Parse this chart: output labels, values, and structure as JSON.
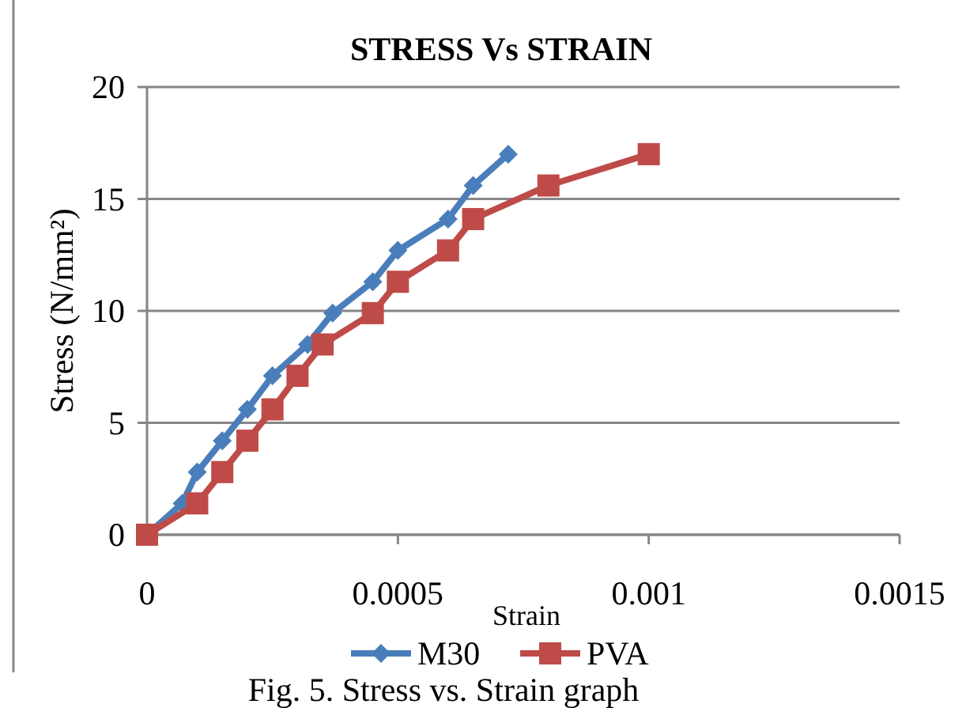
{
  "chart_data": {
    "type": "line",
    "title": "STRESS Vs STRAIN",
    "xlabel": "Strain",
    "ylabel": "Stress (N/mm²)",
    "xlim": [
      0,
      0.0015
    ],
    "xticks": [
      0,
      0.0005,
      0.001,
      0.0015
    ],
    "ylim": [
      0,
      20
    ],
    "yticks": [
      0,
      5,
      10,
      15,
      20
    ],
    "grid": "y",
    "legend": "bottom",
    "marker": "diamond",
    "annotations": [
      "Fig. 5.  Stress vs. Strain graph"
    ],
    "series": [
      {
        "name": "M30",
        "color": "#4a7ebb",
        "x": [
          0,
          7e-05,
          0.0001,
          0.00015,
          0.0002,
          0.00025,
          0.00032,
          0.00037,
          0.00045,
          0.0005,
          0.0006,
          0.00065,
          0.00072
        ],
        "values": [
          0,
          1.4,
          2.8,
          4.2,
          5.6,
          7.1,
          8.5,
          9.9,
          11.3,
          12.7,
          14.1,
          15.6,
          17
        ]
      },
      {
        "name": "PVA",
        "color": "#be4b48",
        "marker": "square",
        "x": [
          0,
          0.0001,
          0.00015,
          0.0002,
          0.00025,
          0.0003,
          0.00035,
          0.00045,
          0.0005,
          0.0006,
          0.00065,
          0.0008,
          0.001
        ],
        "values": [
          0,
          1.4,
          2.8,
          4.2,
          5.6,
          7.1,
          8.5,
          9.9,
          11.3,
          12.7,
          14.1,
          15.6,
          17
        ]
      }
    ]
  }
}
